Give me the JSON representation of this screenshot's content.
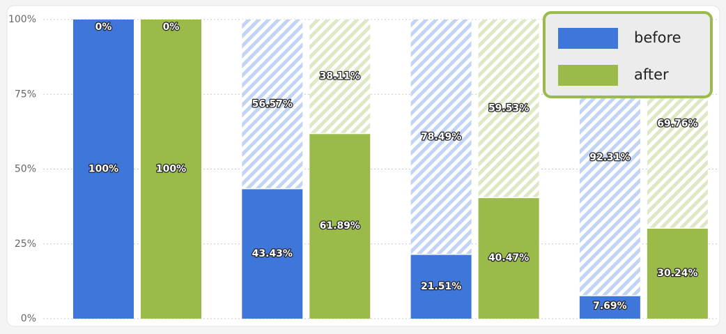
{
  "chart_data": {
    "type": "stacked-bar-100",
    "categories": [
      null,
      null,
      null,
      null
    ],
    "series": [
      {
        "name": "before",
        "color": "#3f76d9",
        "rest_color": "#c2d4f4",
        "values": [
          100,
          43.43,
          21.51,
          7.69
        ],
        "value_labels": [
          "100%",
          "43.43%",
          "21.51%",
          "7.69%"
        ],
        "rest": [
          0,
          56.57,
          78.49,
          92.31
        ],
        "rest_labels": [
          "0%",
          "56.57%",
          "78.49%",
          "92.31%"
        ]
      },
      {
        "name": "after",
        "color": "#9aba4a",
        "rest_color": "#dde8c4",
        "values": [
          100,
          61.89,
          40.47,
          30.24
        ],
        "value_labels": [
          "100%",
          "61.89%",
          "40.47%",
          "30.24%"
        ],
        "rest": [
          0,
          38.11,
          59.53,
          69.76
        ],
        "rest_labels": [
          "0%",
          "38.11%",
          "59.53%",
          "69.76%"
        ]
      }
    ],
    "ylim": [
      0,
      100
    ],
    "yticks": [
      {
        "value": 0,
        "label": "0%"
      },
      {
        "value": 25,
        "label": "25%"
      },
      {
        "value": 50,
        "label": "50%"
      },
      {
        "value": 75,
        "label": "75%"
      },
      {
        "value": 100,
        "label": "100%"
      }
    ],
    "grid": true,
    "legend": "top-right"
  }
}
